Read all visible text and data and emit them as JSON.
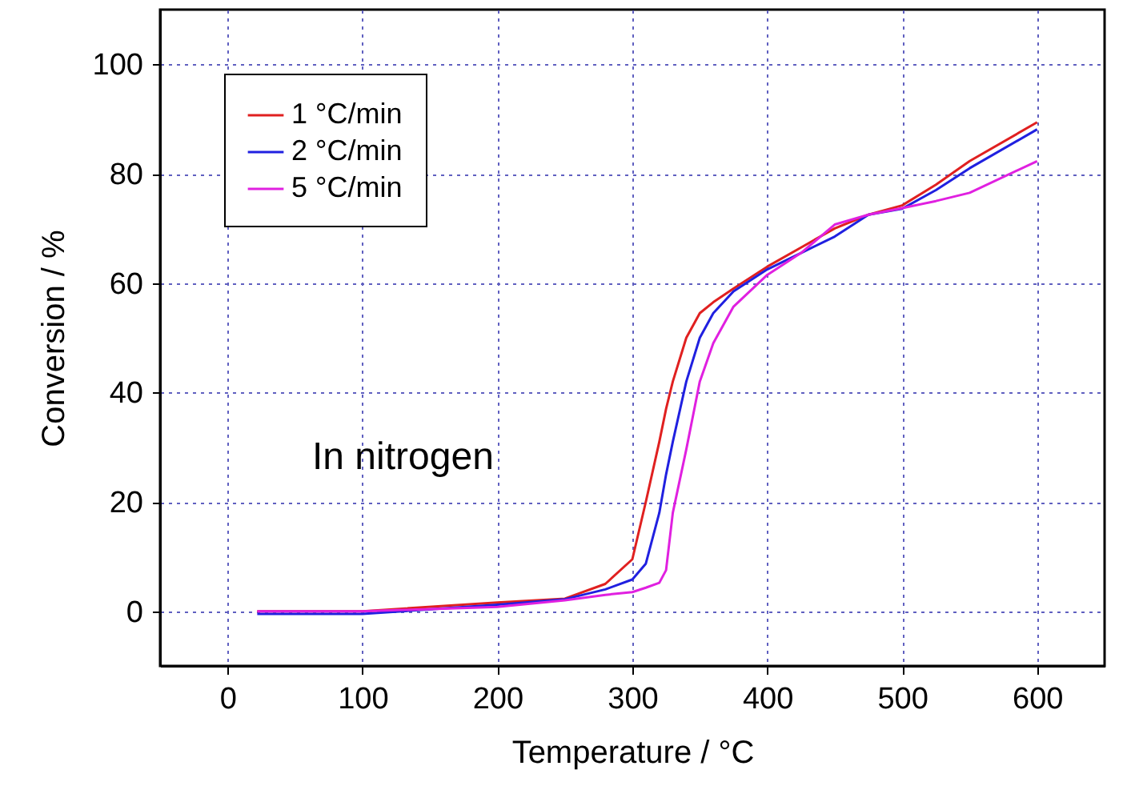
{
  "chart_data": {
    "type": "line",
    "xlabel": "Temperature / °C",
    "ylabel": "Conversion / %",
    "x": [
      22,
      100,
      200,
      250,
      280,
      300,
      310,
      320,
      325,
      330,
      340,
      350,
      360,
      375,
      400,
      425,
      450,
      475,
      500,
      525,
      550,
      600
    ],
    "series": [
      {
        "name": "1 °C/min",
        "color": "#e02020",
        "values": [
          0,
          0,
          1.6,
          2.3,
          5,
          9.5,
          20,
          31,
          37,
          42,
          50,
          54.5,
          56.5,
          59,
          63,
          66.5,
          70,
          72.5,
          74.2,
          78,
          82.3,
          89.4
        ]
      },
      {
        "name": "2 °C/min",
        "color": "#2020e0",
        "values": [
          -0.5,
          -0.5,
          1.2,
          2.2,
          4,
          5.8,
          8.7,
          18,
          25,
          31,
          42,
          50,
          54.5,
          58.5,
          62.5,
          65.5,
          68.5,
          72.5,
          73.6,
          77,
          81,
          88.1
        ]
      },
      {
        "name": "5 °C/min",
        "color": "#e020e0",
        "values": [
          0,
          0,
          0.8,
          2,
          3,
          3.5,
          4.3,
          5.2,
          7.5,
          18,
          29.6,
          42,
          49,
          55.7,
          61.5,
          65.5,
          70.7,
          72.5,
          73.7,
          75,
          76.5,
          82.3
        ]
      }
    ],
    "xlim": [
      -50,
      650
    ],
    "xticks": [
      0,
      100,
      200,
      300,
      400,
      500,
      600
    ],
    "ylim": [
      -10,
      110
    ],
    "yticks": [
      0,
      20,
      40,
      60,
      80,
      100
    ],
    "grid": true,
    "legend": "top left",
    "line_style": "solid",
    "marker": "none",
    "annotations": [
      "In nitrogen"
    ]
  }
}
